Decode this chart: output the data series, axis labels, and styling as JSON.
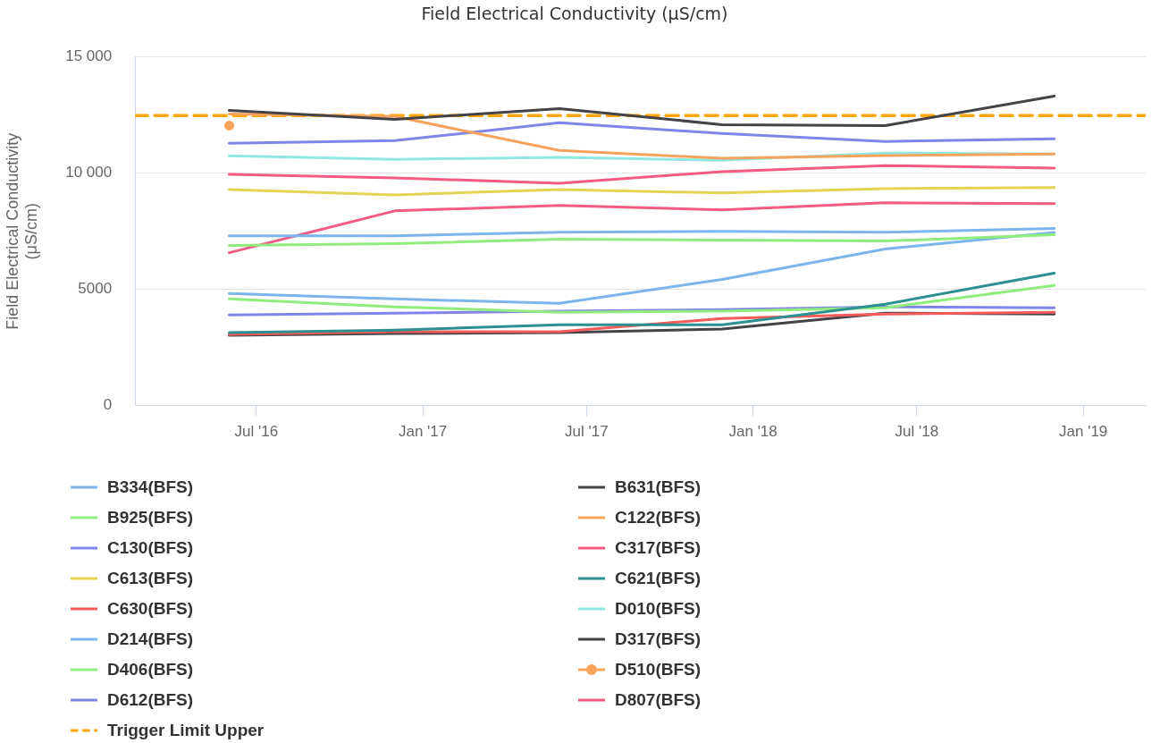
{
  "chart_data": {
    "type": "line",
    "title": "Field Electrical Conductivity (μS/cm)",
    "ylabel": "Field Electrical Conductivity (μS/cm)",
    "x": [
      "2016-06-01",
      "2016-12-01",
      "2017-06-01",
      "2017-11-28",
      "2018-05-27",
      "2018-11-30"
    ],
    "xlim": [
      "2016-02-18",
      "2019-03-11"
    ],
    "xticks": [
      {
        "value": "2016-07-01",
        "label": "Jul '16"
      },
      {
        "value": "2017-01-01",
        "label": "Jan '17"
      },
      {
        "value": "2017-07-01",
        "label": "Jul '17"
      },
      {
        "value": "2018-01-01",
        "label": "Jan '18"
      },
      {
        "value": "2018-07-01",
        "label": "Jul '18"
      },
      {
        "value": "2019-01-01",
        "label": "Jan '19"
      }
    ],
    "ylim": [
      0,
      15000
    ],
    "yticks": [
      0,
      5000,
      {
        "value": 10000,
        "label": "10 000"
      },
      {
        "value": 15000,
        "label": "15 000"
      }
    ],
    "grid": "y",
    "legend": "bottom",
    "series": [
      {
        "name": "B334(BFS)",
        "color": "#7cb5ec",
        "values": [
          7310,
          7310,
          7460,
          7500,
          7460,
          7620
        ]
      },
      {
        "name": "B631(BFS)",
        "color": "#434348",
        "values": [
          12700,
          12320,
          12780,
          12090,
          12050,
          13320
        ]
      },
      {
        "name": "B925(BFS)",
        "color": "#90ed7d",
        "values": [
          6890,
          6970,
          7160,
          7120,
          7080,
          7350
        ]
      },
      {
        "name": "C122(BFS)",
        "color": "#f7a35c",
        "values": [
          12550,
          12440,
          10980,
          10640,
          10760,
          10830
        ]
      },
      {
        "name": "C130(BFS)",
        "color": "#8085e9",
        "values": [
          11290,
          11400,
          12170,
          11710,
          11370,
          11480
        ]
      },
      {
        "name": "C317(BFS)",
        "color": "#f15c80",
        "values": [
          9950,
          9800,
          9570,
          10070,
          10330,
          10220
        ]
      },
      {
        "name": "C613(BFS)",
        "color": "#e4d354",
        "values": [
          9300,
          9070,
          9300,
          9150,
          9340,
          9380
        ]
      },
      {
        "name": "C621(BFS)",
        "color": "#2b908f",
        "values": [
          3140,
          3250,
          3480,
          3480,
          4360,
          5700
        ]
      },
      {
        "name": "C630(BFS)",
        "color": "#f45b5b",
        "values": [
          3060,
          3180,
          3180,
          3750,
          3940,
          4020
        ]
      },
      {
        "name": "D010(BFS)",
        "color": "#91e8e1",
        "values": [
          10750,
          10600,
          10680,
          10560,
          10870,
          10830
        ]
      },
      {
        "name": "D214(BFS)",
        "color": "#7cb5ec",
        "values": [
          4820,
          4590,
          4400,
          5430,
          6740,
          7450
        ]
      },
      {
        "name": "D317(BFS)",
        "color": "#434348",
        "values": [
          3020,
          3100,
          3140,
          3290,
          3980,
          3940
        ]
      },
      {
        "name": "D406(BFS)",
        "color": "#90ed7d",
        "values": [
          4590,
          4250,
          4020,
          4060,
          4210,
          5170
        ]
      },
      {
        "name": "D510(BFS)",
        "color": "#f7a35c",
        "marker": "circle",
        "values": [
          12050,
          null,
          null,
          null,
          null,
          null
        ]
      },
      {
        "name": "D612(BFS)",
        "color": "#8085e9",
        "values": [
          3900,
          3980,
          4060,
          4130,
          4250,
          4210
        ]
      },
      {
        "name": "D807(BFS)",
        "color": "#f15c80",
        "values": [
          6580,
          8380,
          8610,
          8420,
          8730,
          8690
        ]
      },
      {
        "name": "Trigger Limit Upper",
        "color": "#ffa500",
        "line_style": "dashed",
        "x": [
          "2016-02-18",
          "2019-03-11"
        ],
        "values": [
          12480,
          12480
        ]
      }
    ]
  }
}
